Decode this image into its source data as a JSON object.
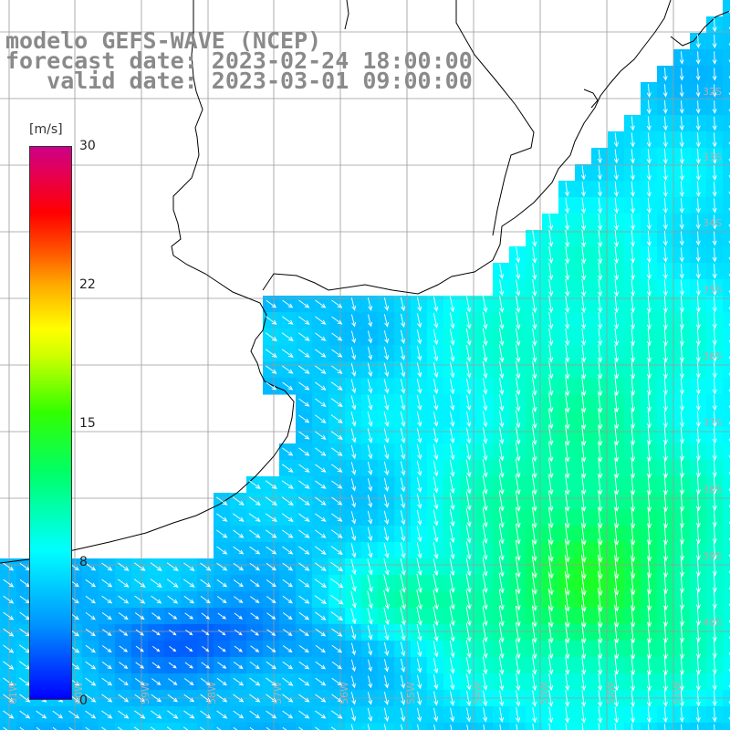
{
  "title": {
    "model": "modelo GEFS-WAVE (NCEP)",
    "forecast": "forecast date: 2023-02-24 18:00:00",
    "valid": "   valid date: 2023-03-01 09:00:00"
  },
  "colorbar": {
    "unit": "[m/s]",
    "labels": [
      "30",
      "22",
      "15",
      "8",
      "0"
    ],
    "stops": [
      0,
      8,
      15,
      22,
      30
    ],
    "colors": [
      "#0000ff",
      "#00ffff",
      "#33ff00",
      "#ff6600",
      "#cc0088"
    ]
  },
  "lat_labels": [
    "32S",
    "33S",
    "34S",
    "35S",
    "36S",
    "37S",
    "38S",
    "39S",
    "40S"
  ],
  "lon_labels": [
    "61W",
    "60W",
    "59W",
    "58W",
    "57W",
    "56W",
    "55W",
    "54W",
    "53W",
    "52W",
    "51W"
  ],
  "colors": {
    "land": "#ffffff",
    "grid": "#9a9a9a",
    "coast": "#000000",
    "arrow": "#ffffff",
    "title": "#8a8a8a"
  }
}
